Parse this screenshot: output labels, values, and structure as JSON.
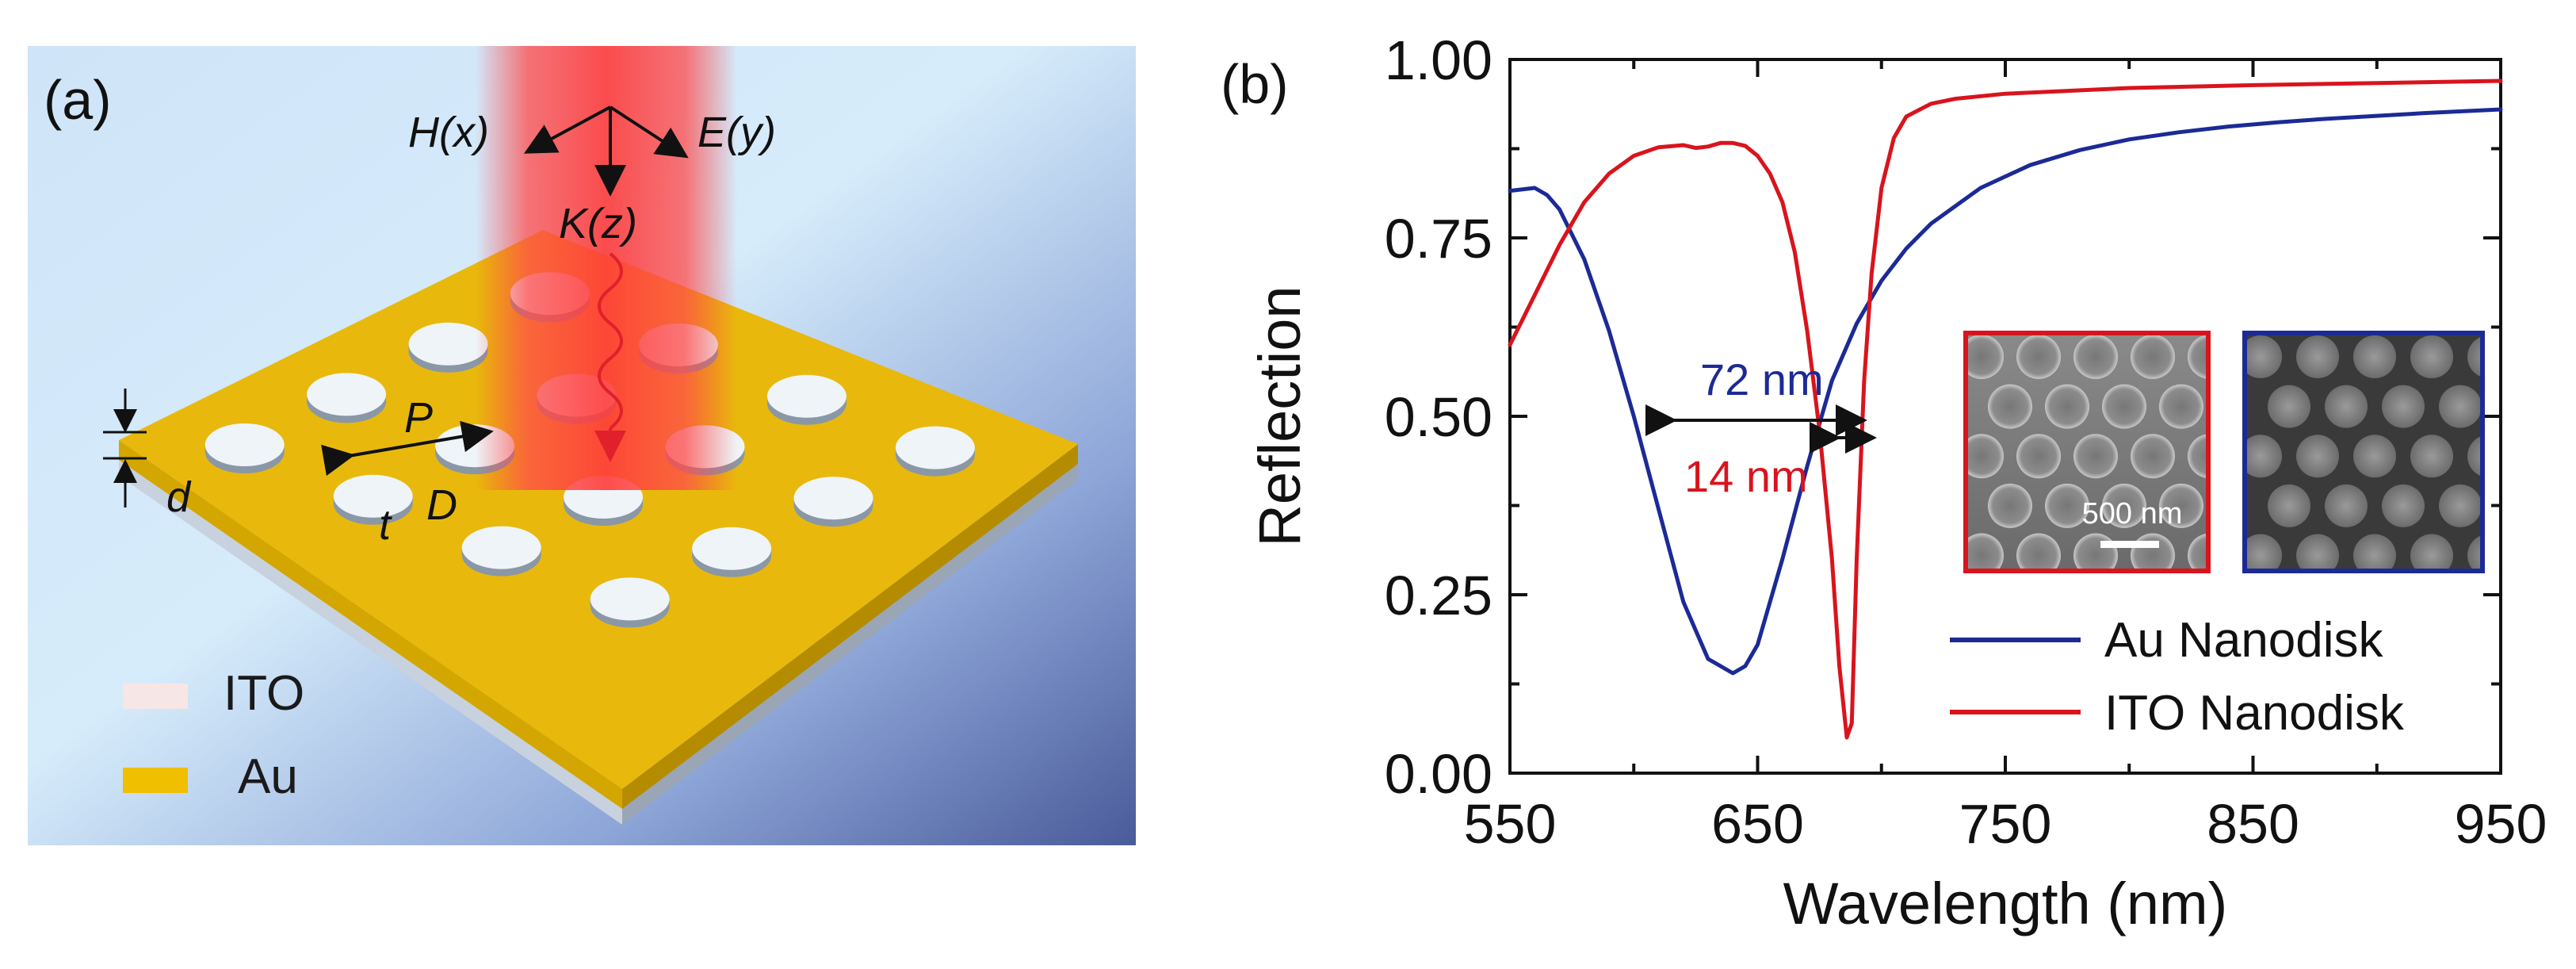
{
  "panel_a": {
    "label": "(a)",
    "field_labels": {
      "h": "H(x)",
      "e": "E(y)",
      "k": "K(z)"
    },
    "dims": {
      "period": "P",
      "diameter": "D",
      "thickness": "t",
      "gap": "d"
    },
    "legend": [
      {
        "text": "ITO",
        "color": "#f7e6e6"
      },
      {
        "text": "Au",
        "color": "#efbf00"
      }
    ]
  },
  "panel_b": {
    "label": "(b)",
    "annotations": {
      "au_width": {
        "text": "72 nm",
        "color": "#1c2a96"
      },
      "ito_width": {
        "text": "14 nm",
        "color": "#d8141d"
      }
    },
    "sem": {
      "scale_bar": "500 nm"
    }
  },
  "chart_data": {
    "type": "line",
    "title": "",
    "xlabel": "Wavelength (nm)",
    "ylabel": "Reflection",
    "xlim": [
      550,
      950
    ],
    "ylim": [
      0,
      1
    ],
    "xticks": [
      550,
      650,
      750,
      850,
      950
    ],
    "yticks": [
      0.0,
      0.25,
      0.5,
      0.75,
      1.0
    ],
    "xtick_labels": [
      "550",
      "650",
      "750",
      "850",
      "950"
    ],
    "ytick_labels": [
      "0.00",
      "0.25",
      "0.50",
      "0.75",
      "1.00"
    ],
    "legend_position": "bottom-right",
    "series": [
      {
        "name": "Au Nanodisk",
        "color": "#1c2a96",
        "x": [
          550,
          560,
          565,
          570,
          580,
          590,
          600,
          610,
          620,
          630,
          640,
          645,
          650,
          660,
          670,
          680,
          690,
          700,
          710,
          720,
          740,
          760,
          780,
          800,
          820,
          840,
          860,
          880,
          900,
          920,
          950
        ],
        "y": [
          0.816,
          0.82,
          0.81,
          0.79,
          0.72,
          0.62,
          0.5,
          0.37,
          0.24,
          0.16,
          0.14,
          0.15,
          0.18,
          0.3,
          0.43,
          0.55,
          0.63,
          0.69,
          0.735,
          0.77,
          0.82,
          0.852,
          0.873,
          0.888,
          0.898,
          0.906,
          0.912,
          0.917,
          0.921,
          0.925,
          0.93
        ]
      },
      {
        "name": "ITO Nanodisk",
        "color": "#d8141d",
        "x": [
          550,
          560,
          570,
          580,
          590,
          600,
          610,
          620,
          625,
          630,
          635,
          640,
          645,
          650,
          655,
          660,
          665,
          670,
          675,
          680,
          683,
          686,
          688,
          690,
          693,
          696,
          700,
          705,
          710,
          720,
          730,
          750,
          800,
          850,
          900,
          950
        ],
        "y": [
          0.6,
          0.67,
          0.74,
          0.8,
          0.84,
          0.865,
          0.877,
          0.88,
          0.876,
          0.878,
          0.883,
          0.883,
          0.879,
          0.865,
          0.84,
          0.8,
          0.73,
          0.62,
          0.48,
          0.3,
          0.15,
          0.05,
          0.07,
          0.3,
          0.55,
          0.7,
          0.82,
          0.89,
          0.92,
          0.938,
          0.945,
          0.952,
          0.96,
          0.964,
          0.967,
          0.97
        ]
      }
    ]
  }
}
